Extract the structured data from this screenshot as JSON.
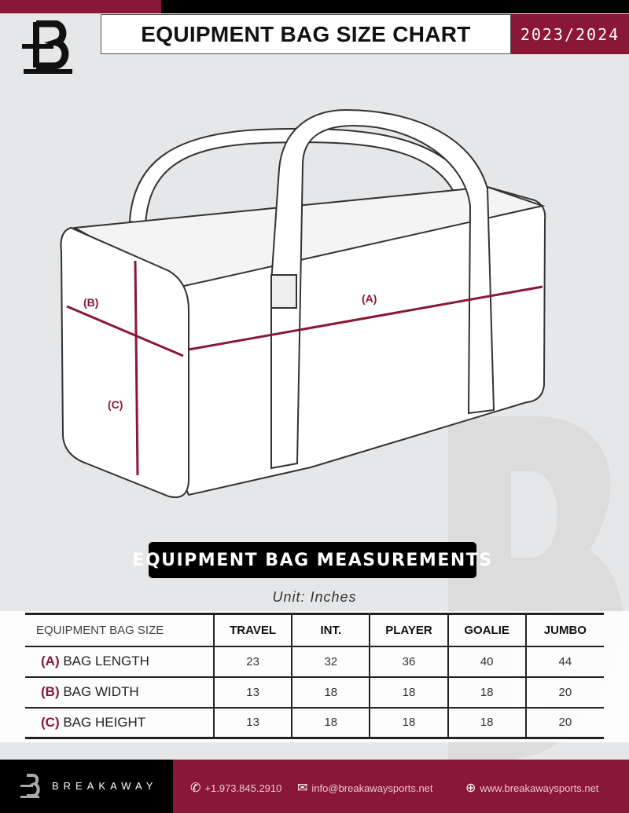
{
  "header": {
    "title": "EQUIPMENT BAG SIZE CHART",
    "season": "2023/2024",
    "logo": "B"
  },
  "diagram": {
    "labels": {
      "a": "(A)",
      "b": "(B)",
      "c": "(C)"
    }
  },
  "measurements": {
    "title": "EQUIPMENT BAG MEASUREMENTS",
    "unit": "Unit: Inches",
    "columns": [
      "EQUIPMENT BAG SIZE",
      "TRAVEL",
      "INT.",
      "PLAYER",
      "GOALIE",
      "JUMBO"
    ],
    "rows": [
      {
        "code": "(A)",
        "label": "BAG LENGTH",
        "values": [
          "23",
          "32",
          "36",
          "40",
          "44"
        ]
      },
      {
        "code": "(B)",
        "label": "BAG WIDTH",
        "values": [
          "13",
          "18",
          "18",
          "18",
          "20"
        ]
      },
      {
        "code": "(C)",
        "label": "BAG HEIGHT",
        "values": [
          "13",
          "18",
          "18",
          "18",
          "20"
        ]
      }
    ]
  },
  "footer": {
    "brand": "BREAKAWAY",
    "phone": "+1.973.845.2910",
    "email": "info@breakawaysports.net",
    "website": "www.breakawaysports.net"
  },
  "colors": {
    "accent": "#8a1735",
    "dark": "#000000",
    "background": "#e6e7e8"
  }
}
